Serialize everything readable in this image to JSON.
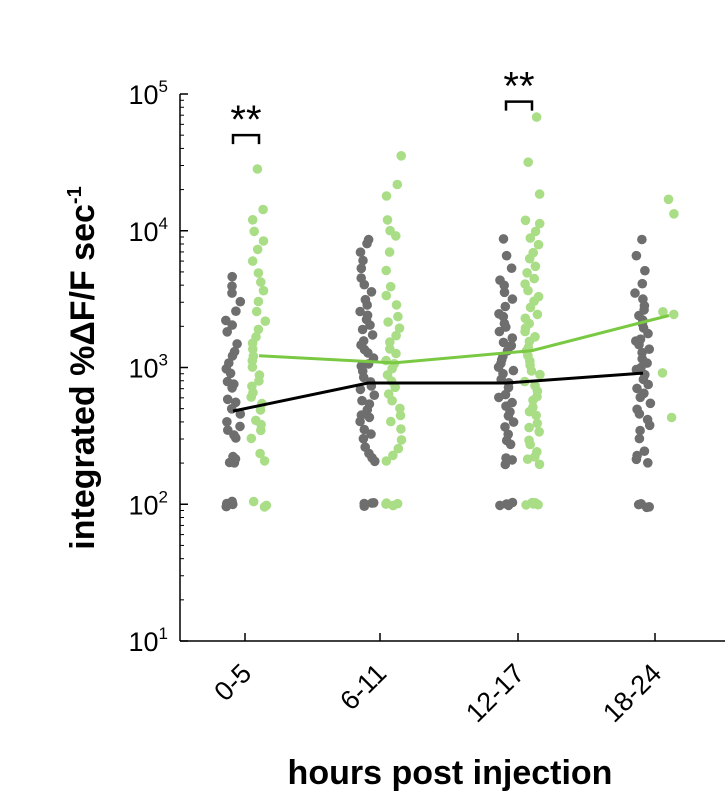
{
  "chart_data": {
    "type": "scatter",
    "title": "",
    "xlabel": "hours post injection",
    "ylabel_main": "integrated %ΔF/F sec",
    "ylabel_sup": "-1",
    "yscale": "log",
    "ylim": [
      10,
      100000
    ],
    "y_ticks": [
      {
        "base": "10",
        "exp": "1",
        "value": 10
      },
      {
        "base": "10",
        "exp": "2",
        "value": 100
      },
      {
        "base": "10",
        "exp": "3",
        "value": 1000
      },
      {
        "base": "10",
        "exp": "4",
        "value": 10000
      },
      {
        "base": "10",
        "exp": "5",
        "value": 100000
      }
    ],
    "categories": [
      "0-5",
      "6-11",
      "12-17",
      "18-24"
    ],
    "colors": {
      "gray": "#6e6e6e",
      "green": "#a9dd86",
      "gray_line": "#000000",
      "green_line": "#7ac943"
    },
    "series": [
      {
        "color_key": "gray",
        "points": [
          [
            0,
            100
          ],
          [
            0,
            100
          ],
          [
            0,
            105
          ],
          [
            0,
            98
          ],
          [
            0,
            200
          ],
          [
            0,
            205
          ],
          [
            0,
            210
          ],
          [
            0,
            220
          ],
          [
            0,
            300
          ],
          [
            0,
            320
          ],
          [
            0,
            340
          ],
          [
            0,
            380
          ],
          [
            0,
            400
          ],
          [
            0,
            450
          ],
          [
            0,
            500
          ],
          [
            0,
            550
          ],
          [
            0,
            600
          ],
          [
            0,
            700
          ],
          [
            0,
            750
          ],
          [
            0,
            800
          ],
          [
            0,
            900
          ],
          [
            0,
            1000
          ],
          [
            0,
            1100
          ],
          [
            0,
            1200
          ],
          [
            0,
            1300
          ],
          [
            0,
            1500
          ],
          [
            0,
            1800
          ],
          [
            0,
            2000
          ],
          [
            0,
            2200
          ],
          [
            0,
            2600
          ],
          [
            0,
            3000
          ],
          [
            0,
            3500
          ],
          [
            0,
            4000
          ],
          [
            0,
            4600
          ],
          [
            1,
            100
          ],
          [
            1,
            100
          ],
          [
            1,
            98
          ],
          [
            1,
            105
          ],
          [
            1,
            210
          ],
          [
            1,
            220
          ],
          [
            1,
            230
          ],
          [
            1,
            260
          ],
          [
            1,
            300
          ],
          [
            1,
            330
          ],
          [
            1,
            360
          ],
          [
            1,
            400
          ],
          [
            1,
            430
          ],
          [
            1,
            460
          ],
          [
            1,
            500
          ],
          [
            1,
            540
          ],
          [
            1,
            580
          ],
          [
            1,
            620
          ],
          [
            1,
            680
          ],
          [
            1,
            740
          ],
          [
            1,
            800
          ],
          [
            1,
            860
          ],
          [
            1,
            920
          ],
          [
            1,
            1000
          ],
          [
            1,
            1080
          ],
          [
            1,
            1150
          ],
          [
            1,
            1250
          ],
          [
            1,
            1350
          ],
          [
            1,
            1450
          ],
          [
            1,
            1550
          ],
          [
            1,
            1700
          ],
          [
            1,
            1850
          ],
          [
            1,
            2000
          ],
          [
            1,
            2200
          ],
          [
            1,
            2400
          ],
          [
            1,
            2600
          ],
          [
            1,
            2900
          ],
          [
            1,
            3200
          ],
          [
            1,
            3600
          ],
          [
            1,
            4000
          ],
          [
            1,
            4600
          ],
          [
            1,
            5200
          ],
          [
            1,
            6000
          ],
          [
            1,
            7000
          ],
          [
            1,
            8000
          ],
          [
            1,
            8800
          ],
          [
            2,
            100
          ],
          [
            2,
            100
          ],
          [
            2,
            98
          ],
          [
            2,
            104
          ],
          [
            2,
            200
          ],
          [
            2,
            210
          ],
          [
            2,
            220
          ],
          [
            2,
            280
          ],
          [
            2,
            300
          ],
          [
            2,
            330
          ],
          [
            2,
            360
          ],
          [
            2,
            400
          ],
          [
            2,
            440
          ],
          [
            2,
            480
          ],
          [
            2,
            520
          ],
          [
            2,
            560
          ],
          [
            2,
            600
          ],
          [
            2,
            650
          ],
          [
            2,
            700
          ],
          [
            2,
            760
          ],
          [
            2,
            820
          ],
          [
            2,
            880
          ],
          [
            2,
            950
          ],
          [
            2,
            1000
          ],
          [
            2,
            1080
          ],
          [
            2,
            1150
          ],
          [
            2,
            1230
          ],
          [
            2,
            1320
          ],
          [
            2,
            1420
          ],
          [
            2,
            1520
          ],
          [
            2,
            1650
          ],
          [
            2,
            1800
          ],
          [
            2,
            1950
          ],
          [
            2,
            2100
          ],
          [
            2,
            2300
          ],
          [
            2,
            2500
          ],
          [
            2,
            2800
          ],
          [
            2,
            3100
          ],
          [
            2,
            3500
          ],
          [
            2,
            3900
          ],
          [
            2,
            4400
          ],
          [
            2,
            5200
          ],
          [
            2,
            6500
          ],
          [
            2,
            8600
          ],
          [
            3,
            95
          ],
          [
            3,
            100
          ],
          [
            3,
            98
          ],
          [
            3,
            103
          ],
          [
            3,
            200
          ],
          [
            3,
            210
          ],
          [
            3,
            230
          ],
          [
            3,
            250
          ],
          [
            3,
            300
          ],
          [
            3,
            340
          ],
          [
            3,
            380
          ],
          [
            3,
            420
          ],
          [
            3,
            460
          ],
          [
            3,
            500
          ],
          [
            3,
            550
          ],
          [
            3,
            600
          ],
          [
            3,
            650
          ],
          [
            3,
            700
          ],
          [
            3,
            760
          ],
          [
            3,
            820
          ],
          [
            3,
            880
          ],
          [
            3,
            950
          ],
          [
            3,
            1020
          ],
          [
            3,
            1100
          ],
          [
            3,
            1180
          ],
          [
            3,
            1260
          ],
          [
            3,
            1350
          ],
          [
            3,
            1450
          ],
          [
            3,
            1550
          ],
          [
            3,
            1650
          ],
          [
            3,
            1780
          ],
          [
            3,
            1900
          ],
          [
            3,
            2050
          ],
          [
            3,
            2200
          ],
          [
            3,
            2400
          ],
          [
            3,
            2600
          ],
          [
            3,
            2850
          ],
          [
            3,
            3100
          ],
          [
            3,
            3500
          ],
          [
            3,
            4000
          ],
          [
            3,
            5000
          ],
          [
            3,
            6500
          ],
          [
            3,
            8700
          ]
        ]
      },
      {
        "color_key": "green",
        "points": [
          [
            0,
            100
          ],
          [
            0,
            102
          ],
          [
            0,
            98
          ],
          [
            0,
            210
          ],
          [
            0,
            240
          ],
          [
            0,
            300
          ],
          [
            0,
            340
          ],
          [
            0,
            380
          ],
          [
            0,
            420
          ],
          [
            0,
            480
          ],
          [
            0,
            550
          ],
          [
            0,
            600
          ],
          [
            0,
            650
          ],
          [
            0,
            720
          ],
          [
            0,
            800
          ],
          [
            0,
            900
          ],
          [
            0,
            1000
          ],
          [
            0,
            1100
          ],
          [
            0,
            1200
          ],
          [
            0,
            1350
          ],
          [
            0,
            1500
          ],
          [
            0,
            1700
          ],
          [
            0,
            1900
          ],
          [
            0,
            2200
          ],
          [
            0,
            2600
          ],
          [
            0,
            3000
          ],
          [
            0,
            3600
          ],
          [
            0,
            4200
          ],
          [
            0,
            5000
          ],
          [
            0,
            6000
          ],
          [
            0,
            7200
          ],
          [
            0,
            8500
          ],
          [
            0,
            10000
          ],
          [
            0,
            12000
          ],
          [
            0,
            14000
          ],
          [
            0,
            28000
          ],
          [
            1,
            100
          ],
          [
            1,
            100
          ],
          [
            1,
            102
          ],
          [
            1,
            98
          ],
          [
            1,
            210
          ],
          [
            1,
            230
          ],
          [
            1,
            250
          ],
          [
            1,
            300
          ],
          [
            1,
            350
          ],
          [
            1,
            400
          ],
          [
            1,
            450
          ],
          [
            1,
            500
          ],
          [
            1,
            580
          ],
          [
            1,
            650
          ],
          [
            1,
            720
          ],
          [
            1,
            800
          ],
          [
            1,
            880
          ],
          [
            1,
            960
          ],
          [
            1,
            1050
          ],
          [
            1,
            1150
          ],
          [
            1,
            1250
          ],
          [
            1,
            1400
          ],
          [
            1,
            1550
          ],
          [
            1,
            1700
          ],
          [
            1,
            1900
          ],
          [
            1,
            2100
          ],
          [
            1,
            2400
          ],
          [
            1,
            2800
          ],
          [
            1,
            3300
          ],
          [
            1,
            4000
          ],
          [
            1,
            5000
          ],
          [
            1,
            7000
          ],
          [
            1,
            9000
          ],
          [
            1,
            10000
          ],
          [
            1,
            12000
          ],
          [
            1,
            18000
          ],
          [
            1,
            22000
          ],
          [
            1,
            35000
          ],
          [
            2,
            100
          ],
          [
            2,
            100
          ],
          [
            2,
            98
          ],
          [
            2,
            104
          ],
          [
            2,
            102
          ],
          [
            2,
            200
          ],
          [
            2,
            210
          ],
          [
            2,
            220
          ],
          [
            2,
            240
          ],
          [
            2,
            270
          ],
          [
            2,
            300
          ],
          [
            2,
            330
          ],
          [
            2,
            360
          ],
          [
            2,
            400
          ],
          [
            2,
            440
          ],
          [
            2,
            480
          ],
          [
            2,
            520
          ],
          [
            2,
            570
          ],
          [
            2,
            620
          ],
          [
            2,
            680
          ],
          [
            2,
            740
          ],
          [
            2,
            800
          ],
          [
            2,
            870
          ],
          [
            2,
            940
          ],
          [
            2,
            1020
          ],
          [
            2,
            1100
          ],
          [
            2,
            1200
          ],
          [
            2,
            1300
          ],
          [
            2,
            1400
          ],
          [
            2,
            1520
          ],
          [
            2,
            1650
          ],
          [
            2,
            1800
          ],
          [
            2,
            1950
          ],
          [
            2,
            2100
          ],
          [
            2,
            2300
          ],
          [
            2,
            2500
          ],
          [
            2,
            2750
          ],
          [
            2,
            3000
          ],
          [
            2,
            3300
          ],
          [
            2,
            3650
          ],
          [
            2,
            4000
          ],
          [
            2,
            4500
          ],
          [
            2,
            5000
          ],
          [
            2,
            5600
          ],
          [
            2,
            6300
          ],
          [
            2,
            7000
          ],
          [
            2,
            8000
          ],
          [
            2,
            9000
          ],
          [
            2,
            10000
          ],
          [
            2,
            11000
          ],
          [
            2,
            12000
          ],
          [
            2,
            19000
          ],
          [
            2,
            31000
          ],
          [
            2,
            67000
          ],
          [
            3,
            440
          ],
          [
            3,
            900
          ],
          [
            3,
            2400
          ],
          [
            3,
            2600
          ],
          [
            3,
            13500
          ],
          [
            3,
            17000
          ]
        ]
      }
    ],
    "trend_lines": [
      {
        "color_key": "gray_line",
        "values": [
          480,
          770,
          770,
          910
        ]
      },
      {
        "color_key": "green_line",
        "values": [
          1220,
          1080,
          1330,
          2400
        ]
      }
    ],
    "significance": [
      {
        "category": 0,
        "y": 50000,
        "label": "**"
      },
      {
        "category": 2,
        "y": 88000,
        "label": "**"
      }
    ]
  }
}
